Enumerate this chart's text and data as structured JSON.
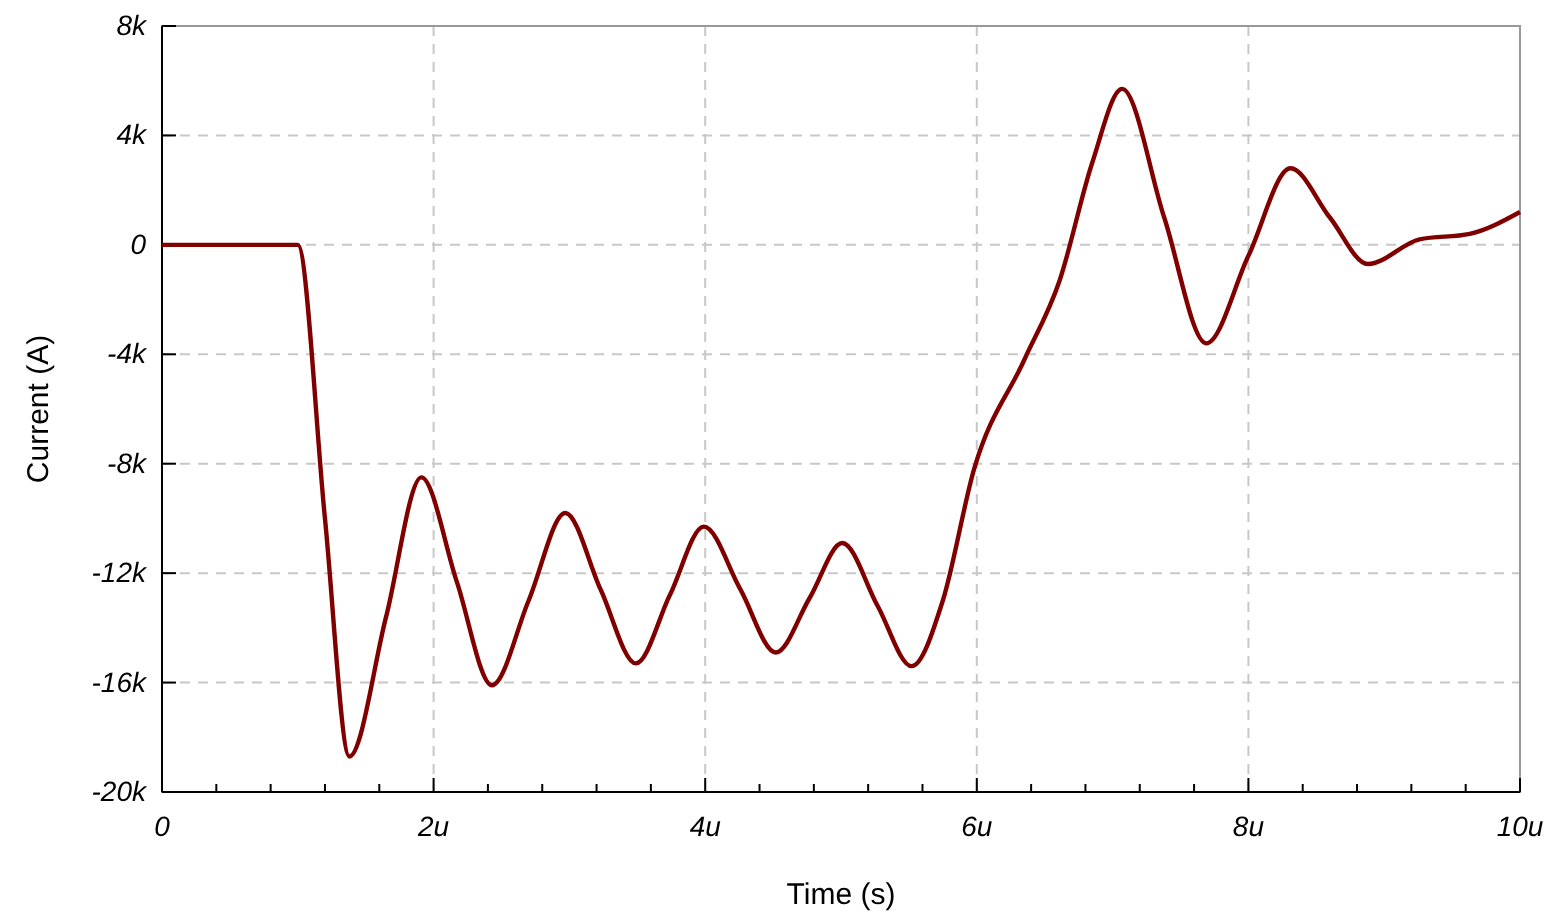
{
  "chart_data": {
    "type": "line",
    "xlabel": "Time (s)",
    "ylabel": "Current (A)",
    "xlim": [
      0,
      10
    ],
    "ylim": [
      -20,
      8
    ],
    "xticks": [
      0,
      {
        "value": 0.4,
        "label": null
      },
      {
        "value": 0.8,
        "label": null
      },
      {
        "value": 1.2,
        "label": null
      },
      {
        "value": 1.6,
        "label": null
      },
      {
        "value": 2,
        "label": "2u"
      },
      {
        "value": 2.4,
        "label": null
      },
      {
        "value": 2.8,
        "label": null
      },
      {
        "value": 3.2,
        "label": null
      },
      {
        "value": 3.6,
        "label": null
      },
      {
        "value": 4,
        "label": "4u"
      },
      {
        "value": 4.4,
        "label": null
      },
      {
        "value": 4.8,
        "label": null
      },
      {
        "value": 5.2,
        "label": null
      },
      {
        "value": 5.6,
        "label": null
      },
      {
        "value": 6,
        "label": "6u"
      },
      {
        "value": 6.4,
        "label": null
      },
      {
        "value": 6.8,
        "label": null
      },
      {
        "value": 7.2,
        "label": null
      },
      {
        "value": 7.6,
        "label": null
      },
      {
        "value": 8,
        "label": "8u"
      },
      {
        "value": 8.4,
        "label": null
      },
      {
        "value": 8.8,
        "label": null
      },
      {
        "value": 9.2,
        "label": null
      },
      {
        "value": 9.6,
        "label": null
      },
      {
        "value": 10,
        "label": "10u"
      }
    ],
    "yticks": [
      {
        "value": -20,
        "label": "-20k"
      },
      {
        "value": -16,
        "label": "-16k"
      },
      {
        "value": -12,
        "label": "-12k"
      },
      {
        "value": -8,
        "label": "-8k"
      },
      {
        "value": -4,
        "label": "-4k"
      },
      0,
      {
        "value": 4,
        "label": "4k"
      },
      {
        "value": 8,
        "label": "8k"
      }
    ],
    "grid": true,
    "line_style": "solid",
    "marker": "none",
    "series": [
      {
        "color": "#800000",
        "x": [
          0,
          0.5,
          1.0,
          1.2,
          1.38,
          1.65,
          1.91,
          2.17,
          2.43,
          2.7,
          2.97,
          3.23,
          3.49,
          3.74,
          3.99,
          4.26,
          4.52,
          4.77,
          5.01,
          5.27,
          5.52,
          5.75,
          5.98,
          6.35,
          6.61,
          6.85,
          7.07,
          7.38,
          7.69,
          8.0,
          8.31,
          8.6,
          8.88,
          9.26,
          9.63,
          10
        ],
        "values": [
          0,
          0,
          0,
          -10,
          -18.7,
          -13.6,
          -8.5,
          -12.3,
          -16.1,
          -13,
          -9.8,
          -12.6,
          -15.3,
          -12.8,
          -10.3,
          -12.6,
          -14.9,
          -12.9,
          -10.9,
          -13.2,
          -15.4,
          -13,
          -8.2,
          -4.2,
          -1.3,
          3,
          5.7,
          1,
          -3.6,
          -0.4,
          2.8,
          1,
          -0.7,
          0.2,
          0.4,
          1.2
        ]
      }
    ]
  }
}
